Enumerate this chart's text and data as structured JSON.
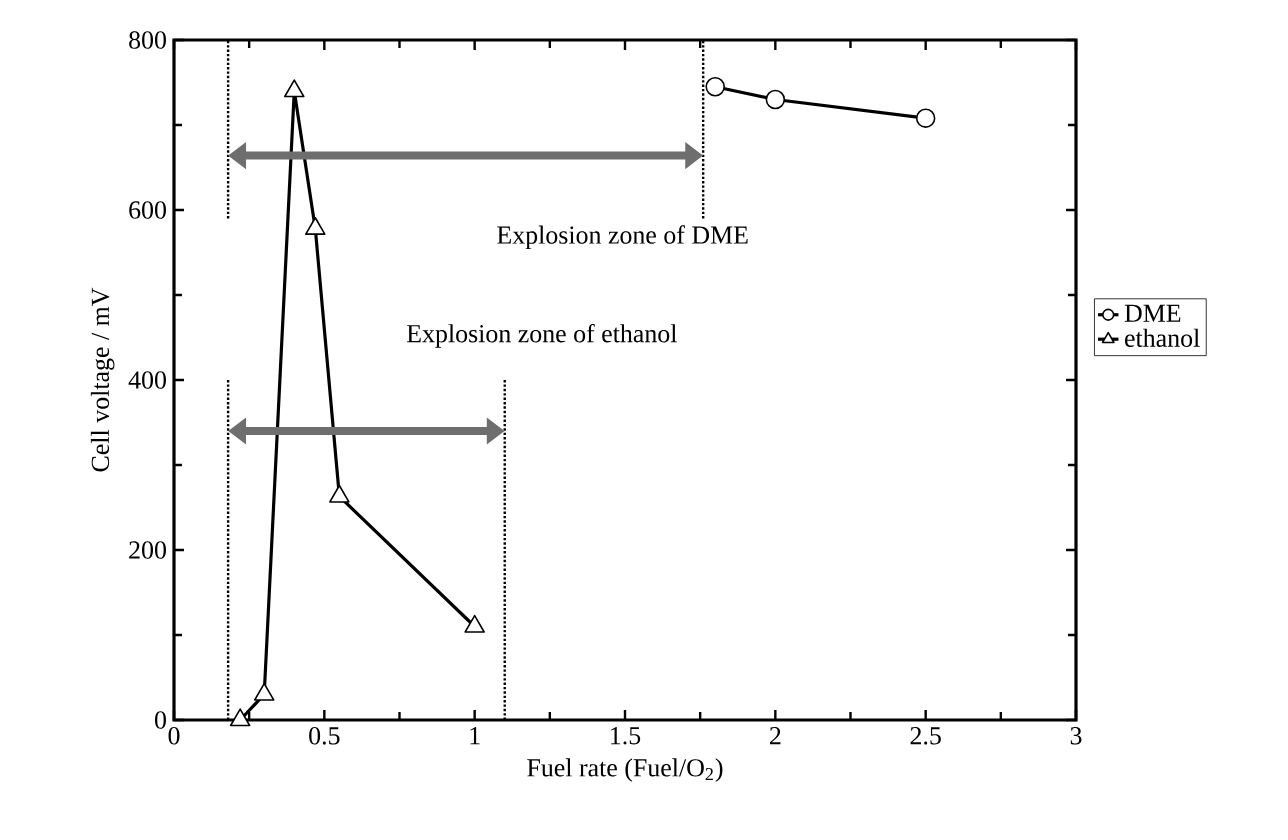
{
  "chart_data": {
    "type": "line",
    "xlabel": "Fuel rate (Fuel/O$_{2}$)",
    "ylabel": "Cell voltage / mV",
    "xlim": [
      0,
      3
    ],
    "xticks": [
      0,
      0.5,
      1,
      1.5,
      2,
      2.5,
      3
    ],
    "ylim": [
      0,
      800
    ],
    "yticks": [
      0,
      200,
      400,
      600,
      800
    ],
    "grid": false,
    "legend": "right",
    "series": [
      {
        "name": "DME",
        "color": "#000000",
        "marker": "circle",
        "x": [
          1.8,
          2.0,
          2.5
        ],
        "values": [
          745,
          730,
          708
        ]
      },
      {
        "name": "ethanol",
        "color": "#000000",
        "marker": "triangle",
        "x": [
          0.22,
          0.3,
          0.4,
          0.47,
          0.55,
          1.0
        ],
        "values": [
          0,
          30,
          740,
          578,
          263,
          110
        ]
      },
      {
        "color": "#000000",
        "marker": "none",
        "line_style": "dotted",
        "x": [
          0.18,
          0.18
        ],
        "values": [
          590,
          800
        ]
      },
      {
        "color": "#000000",
        "marker": "none",
        "line_style": "dotted",
        "x": [
          1.76,
          1.76
        ],
        "values": [
          590,
          800
        ]
      },
      {
        "color": "#000000",
        "marker": "none",
        "line_style": "dotted",
        "x": [
          0.18,
          0.18
        ],
        "values": [
          0,
          400
        ]
      },
      {
        "color": "#000000",
        "marker": "none",
        "line_style": "dotted",
        "x": [
          1.1,
          1.1
        ],
        "values": [
          0,
          400
        ]
      }
    ],
    "annotations": [
      "Explosion zone of DME",
      "Explosion zone of ethanol"
    ]
  }
}
